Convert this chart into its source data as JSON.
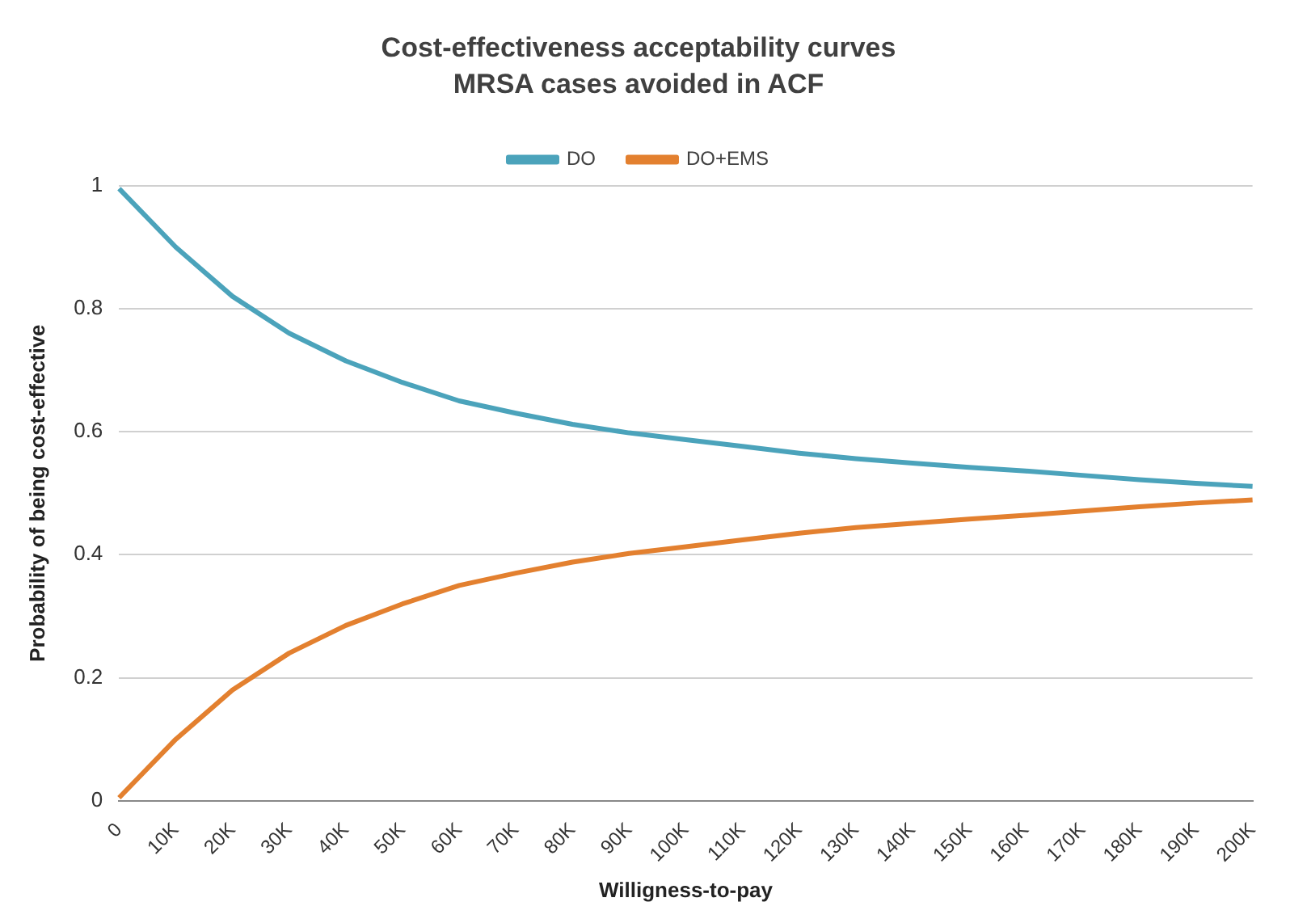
{
  "chart_data": {
    "type": "line",
    "title": "Cost-effectiveness acceptability curves",
    "subtitle": "MRSA cases avoided in ACF",
    "xlabel": "Willigness-to-pay",
    "ylabel": "Probability of being cost-effective",
    "categories": [
      "0",
      "10K",
      "20K",
      "30K",
      "40K",
      "50K",
      "60K",
      "70K",
      "80K",
      "90K",
      "100K",
      "110K",
      "120K",
      "130K",
      "140K",
      "150K",
      "160K",
      "170K",
      "180K",
      "190K",
      "200K"
    ],
    "series": [
      {
        "name": "DO",
        "color": "#4ba3bb",
        "values": [
          0.995,
          0.9,
          0.82,
          0.76,
          0.715,
          0.68,
          0.65,
          0.63,
          0.612,
          0.598,
          0.587,
          0.576,
          0.565,
          0.556,
          0.549,
          0.542,
          0.536,
          0.529,
          0.522,
          0.516,
          0.511
        ]
      },
      {
        "name": "DO+EMS",
        "color": "#e3802f",
        "values": [
          0.005,
          0.1,
          0.18,
          0.24,
          0.285,
          0.32,
          0.35,
          0.37,
          0.388,
          0.402,
          0.413,
          0.424,
          0.435,
          0.444,
          0.451,
          0.458,
          0.464,
          0.471,
          0.478,
          0.484,
          0.489
        ]
      }
    ],
    "ylim": [
      0,
      1
    ],
    "yticks": [
      0,
      0.2,
      0.4,
      0.6,
      0.8,
      1
    ],
    "grid": "y",
    "legend": "top",
    "marker": "none",
    "line_style": "solid"
  }
}
